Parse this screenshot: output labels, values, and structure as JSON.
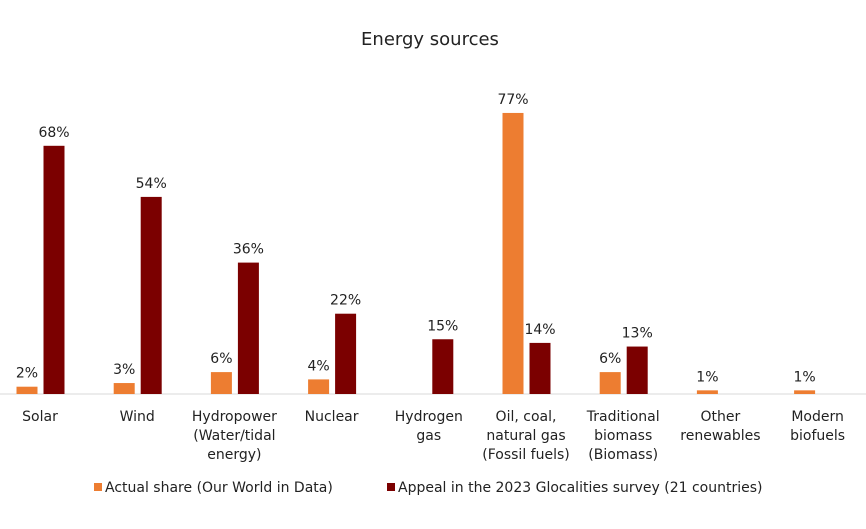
{
  "chart_data": {
    "type": "bar",
    "title": "Energy sources",
    "xlabel": "",
    "ylabel": "",
    "categories": [
      [
        "Solar"
      ],
      [
        "Wind"
      ],
      [
        "Hydropower",
        "(Water/tidal",
        "energy)"
      ],
      [
        "Nuclear"
      ],
      [
        "Hydrogen",
        "gas"
      ],
      [
        "Oil, coal,",
        "natural gas",
        "(Fossil fuels)"
      ],
      [
        "Traditional",
        "biomass",
        "(Biomass)"
      ],
      [
        "Other",
        "renewables"
      ],
      [
        "Modern",
        "biofuels"
      ]
    ],
    "series": [
      {
        "name": "Actual share (Our World in Data)",
        "color": "#ED7D31",
        "values": [
          2,
          3,
          6,
          4,
          null,
          77,
          6,
          1,
          1
        ],
        "labels": [
          "2%",
          "3%",
          "6%",
          "4%",
          "",
          "77%",
          "6%",
          "1%",
          "1%"
        ]
      },
      {
        "name": "Appeal in the 2023 Glocalities survey (21 countries)",
        "color": "#7B0000",
        "values": [
          68,
          54,
          36,
          22,
          15,
          14,
          13,
          null,
          null
        ],
        "labels": [
          "68%",
          "54%",
          "36%",
          "22%",
          "15%",
          "14%",
          "13%",
          "",
          ""
        ]
      }
    ],
    "ylim": [
      0,
      80
    ],
    "grid": false,
    "legend_position": "bottom"
  }
}
